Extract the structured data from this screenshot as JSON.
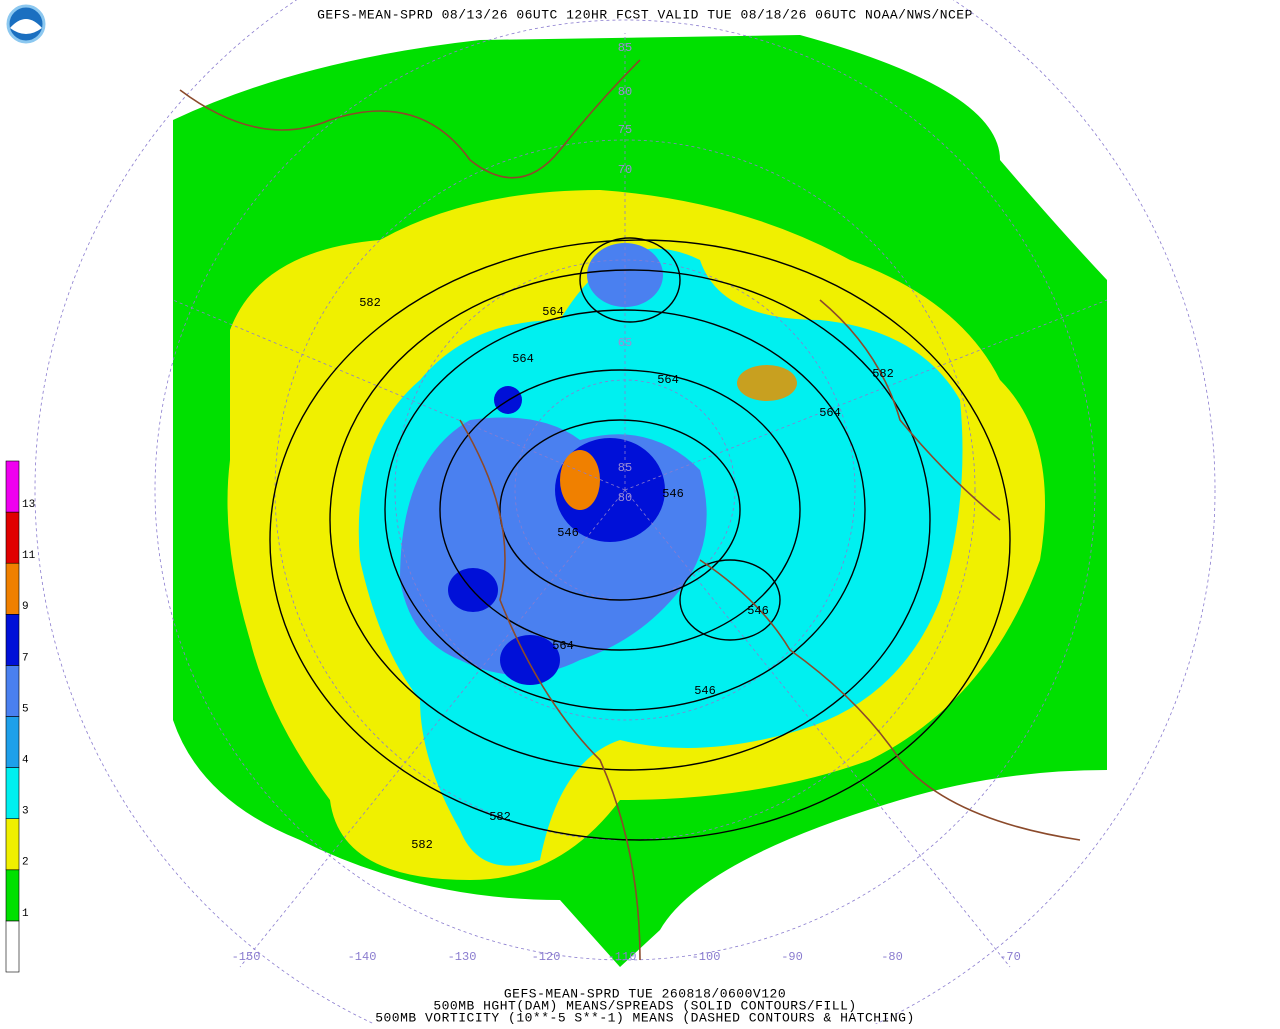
{
  "header": {
    "title": "GEFS-MEAN-SPRD 08/13/26 06UTC 120HR FCST VALID TUE 08/18/26 06UTC NOAA/NWS/NCEP"
  },
  "colorbar": {
    "levels": [
      "1",
      "2",
      "3",
      "4",
      "5",
      "7",
      "9",
      "11",
      "13"
    ],
    "colors": [
      "#ffffff",
      "#00e000",
      "#f0f000",
      "#00f0f0",
      "#1ea0ea",
      "#4a80f0",
      "#0010d8",
      "#f08000",
      "#e00000",
      "#f000f0"
    ]
  },
  "map": {
    "lat_labels": [
      "85",
      "80",
      "75",
      "70",
      "65",
      "85",
      "80"
    ],
    "lon_labels": [
      "-150",
      "-140",
      "-130",
      "-120",
      "-110",
      "-100",
      "-90",
      "-80",
      "-70"
    ],
    "contour_labels": [
      "564",
      "564",
      "564",
      "564",
      "582",
      "582",
      "546",
      "546",
      "546",
      "546",
      "564",
      "582",
      "582"
    ]
  },
  "footer": {
    "lines": [
      "GEFS-MEAN-SPRD TUE 260818/0600V120",
      "500MB HGHT(DAM) MEANS/SPREADS (SOLID CONTOURS/FILL)",
      "500MB VORTICITY (10**-5 S**-1) MEANS (DASHED CONTOURS & HATCHING)"
    ]
  }
}
